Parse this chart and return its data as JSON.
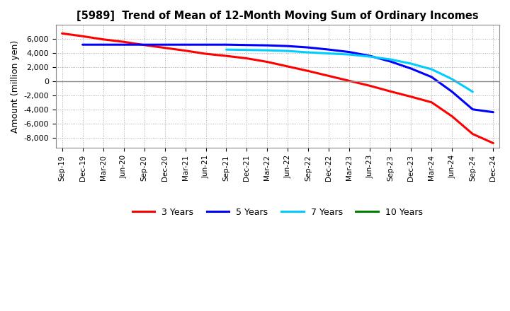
{
  "title": "[5989]  Trend of Mean of 12-Month Moving Sum of Ordinary Incomes",
  "ylabel": "Amount (million yen)",
  "background_color": "#ffffff",
  "grid_color": "#aaaaaa",
  "ylim": [
    -9500,
    8000
  ],
  "yticks": [
    -8000,
    -6000,
    -4000,
    -2000,
    0,
    2000,
    4000,
    6000
  ],
  "x_labels": [
    "Sep-19",
    "Dec-19",
    "Mar-20",
    "Jun-20",
    "Sep-20",
    "Dec-20",
    "Mar-21",
    "Jun-21",
    "Sep-21",
    "Dec-21",
    "Mar-22",
    "Jun-22",
    "Sep-22",
    "Dec-22",
    "Mar-23",
    "Jun-23",
    "Sep-23",
    "Dec-23",
    "Mar-24",
    "Jun-24",
    "Sep-24",
    "Dec-24"
  ],
  "series": {
    "3 Years": {
      "color": "#ff0000",
      "values": [
        6800,
        6400,
        5950,
        5600,
        5150,
        4750,
        4350,
        3900,
        3600,
        3250,
        2750,
        2100,
        1450,
        750,
        50,
        -650,
        -1450,
        -2200,
        -3000,
        -5000,
        -7500,
        -8800
      ]
    },
    "5 Years": {
      "color": "#0000ff",
      "values": [
        null,
        5200,
        5200,
        5200,
        5200,
        5200,
        5200,
        5200,
        5200,
        5150,
        5100,
        5000,
        4800,
        4500,
        4150,
        3600,
        2800,
        1800,
        600,
        -1500,
        -4000,
        -4400
      ]
    },
    "7 Years": {
      "color": "#00ccff",
      "values": [
        null,
        null,
        null,
        null,
        null,
        null,
        null,
        null,
        4500,
        4450,
        4400,
        4300,
        4100,
        3950,
        3800,
        3500,
        3100,
        2500,
        1700,
        300,
        -1500,
        null
      ]
    },
    "10 Years": {
      "color": "#008000",
      "values": [
        null,
        null,
        null,
        null,
        null,
        null,
        null,
        null,
        null,
        null,
        null,
        null,
        null,
        null,
        null,
        null,
        null,
        null,
        null,
        null,
        null,
        null
      ]
    }
  },
  "legend_labels": [
    "3 Years",
    "5 Years",
    "7 Years",
    "10 Years"
  ],
  "legend_colors": [
    "#ff0000",
    "#0000ff",
    "#00ccff",
    "#008000"
  ]
}
